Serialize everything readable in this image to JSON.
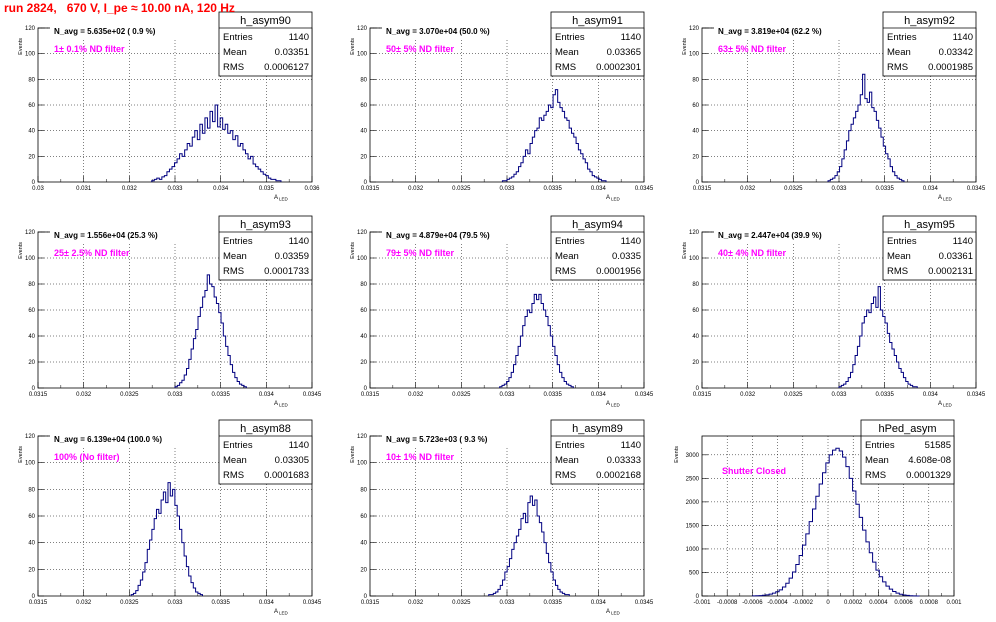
{
  "page": {
    "title": "run 2824,   670 V, I_pe ≈ 10.00 nA, 120 Hz",
    "colors": {
      "title": "#ff0000",
      "histogram": "#000080",
      "annotation": "#ff00ff",
      "grid": "#000000"
    }
  },
  "stat_labels": {
    "entries": "Entries",
    "mean": "Mean",
    "rms": "RMS"
  },
  "chart_data": [
    {
      "type": "histogram",
      "name": "h_asym90",
      "navg_text": "N_avg = 5.635e+02 ( 0.9 %)",
      "filter_text": "1± 0.1% ND filter",
      "stats": {
        "entries": "1140",
        "mean": "0.03351",
        "rms": "0.0006127"
      },
      "xlabel": "A_LED",
      "ylabel": "Events",
      "xlim": [
        0.03,
        0.036
      ],
      "ylim": [
        0,
        120
      ],
      "xticks": [
        0.03,
        0.031,
        0.032,
        0.033,
        0.034,
        0.035,
        0.036
      ],
      "xtick_labels": [
        "0.03",
        "0.031",
        "0.032",
        "0.033",
        "0.034",
        "0.035",
        "0.036"
      ],
      "yticks": [
        0,
        20,
        40,
        60,
        80,
        100,
        120
      ],
      "ytick_labels": [
        "0",
        "20",
        "40",
        "60",
        "80",
        "100",
        "120"
      ],
      "grid": true,
      "bin_start": 0.03249,
      "bin_width": 5.55e-05,
      "values": [
        1,
        2,
        3,
        2,
        4,
        5,
        8,
        10,
        12,
        15,
        18,
        22,
        20,
        25,
        30,
        28,
        35,
        40,
        33,
        45,
        38,
        50,
        42,
        55,
        47,
        60,
        43,
        50,
        41,
        45,
        38,
        40,
        33,
        36,
        28,
        30,
        25,
        22,
        18,
        20,
        14,
        12,
        10,
        8,
        6,
        5,
        3,
        2,
        2,
        1,
        1
      ]
    },
    {
      "type": "histogram",
      "name": "h_asym91",
      "navg_text": "N_avg = 3.070e+04 (50.0 %)",
      "filter_text": "50± 5% ND filter",
      "stats": {
        "entries": "1140",
        "mean": "0.03365",
        "rms": "0.0002301"
      },
      "xlabel": "A_LED",
      "ylabel": "Events",
      "xlim": [
        0.0315,
        0.0345
      ],
      "ylim": [
        0,
        120
      ],
      "xticks": [
        0.0315,
        0.032,
        0.0325,
        0.033,
        0.0335,
        0.034,
        0.0345
      ],
      "xtick_labels": [
        "0.0315",
        "0.032",
        "0.0325",
        "0.033",
        "0.0335",
        "0.034",
        "0.0345"
      ],
      "yticks": [
        0,
        20,
        40,
        60,
        80,
        100,
        120
      ],
      "ytick_labels": [
        "0",
        "20",
        "40",
        "60",
        "80",
        "100",
        "120"
      ],
      "grid": true,
      "bin_start": 0.03295,
      "bin_width": 2.52e-05,
      "values": [
        1,
        1,
        2,
        3,
        4,
        6,
        8,
        12,
        15,
        20,
        25,
        22,
        30,
        35,
        40,
        42,
        50,
        48,
        52,
        55,
        60,
        58,
        68,
        72,
        62,
        58,
        55,
        50,
        48,
        42,
        38,
        35,
        30,
        25,
        22,
        18,
        15,
        10,
        8,
        5,
        4,
        3,
        2,
        1,
        1
      ]
    },
    {
      "type": "histogram",
      "name": "h_asym92",
      "navg_text": "N_avg = 3.819e+04 (62.2 %)",
      "filter_text": "63± 5% ND filter",
      "stats": {
        "entries": "1140",
        "mean": "0.03342",
        "rms": "0.0001985"
      },
      "xlabel": "A_LED",
      "ylabel": "Events",
      "xlim": [
        0.0315,
        0.0345
      ],
      "ylim": [
        0,
        120
      ],
      "xticks": [
        0.0315,
        0.032,
        0.0325,
        0.033,
        0.0335,
        0.034,
        0.0345
      ],
      "xtick_labels": [
        "0.0315",
        "0.032",
        "0.0325",
        "0.033",
        "0.0335",
        "0.034",
        "0.0345"
      ],
      "yticks": [
        0,
        20,
        40,
        60,
        80,
        100,
        120
      ],
      "ytick_labels": [
        "0",
        "20",
        "40",
        "60",
        "80",
        "100",
        "120"
      ],
      "grid": true,
      "bin_start": 0.03288,
      "bin_width": 2.52e-05,
      "values": [
        1,
        2,
        3,
        5,
        8,
        12,
        18,
        25,
        32,
        40,
        45,
        50,
        55,
        60,
        68,
        84,
        65,
        62,
        70,
        58,
        55,
        48,
        42,
        35,
        28,
        22,
        18,
        12,
        8,
        5,
        3,
        2,
        1
      ]
    },
    {
      "type": "histogram",
      "name": "h_asym93",
      "navg_text": "N_avg = 1.556e+04 (25.3 %)",
      "filter_text": "25± 2.5% ND filter",
      "stats": {
        "entries": "1140",
        "mean": "0.03359",
        "rms": "0.0001733"
      },
      "xlabel": "A_LED",
      "ylabel": "Events",
      "xlim": [
        0.0315,
        0.0345
      ],
      "ylim": [
        0,
        120
      ],
      "xticks": [
        0.0315,
        0.032,
        0.0325,
        0.033,
        0.0335,
        0.034,
        0.0345
      ],
      "xtick_labels": [
        "0.0315",
        "0.032",
        "0.0325",
        "0.033",
        "0.0335",
        "0.034",
        "0.0345"
      ],
      "yticks": [
        0,
        20,
        40,
        60,
        80,
        100,
        120
      ],
      "ytick_labels": [
        "0",
        "20",
        "40",
        "60",
        "80",
        "100",
        "120"
      ],
      "grid": true,
      "bin_start": 0.033,
      "bin_width": 2.52e-05,
      "values": [
        1,
        2,
        4,
        6,
        10,
        15,
        22,
        30,
        38,
        45,
        55,
        62,
        70,
        75,
        87,
        80,
        78,
        70,
        65,
        58,
        50,
        40,
        32,
        25,
        18,
        12,
        8,
        5,
        3,
        2,
        1
      ]
    },
    {
      "type": "histogram",
      "name": "h_asym94",
      "navg_text": "N_avg = 4.879e+04 (79.5 %)",
      "filter_text": "79± 5% ND filter",
      "stats": {
        "entries": "1140",
        "mean": "0.0335",
        "rms": "0.0001956"
      },
      "xlabel": "A_LED",
      "ylabel": "Events",
      "xlim": [
        0.0315,
        0.0345
      ],
      "ylim": [
        0,
        120
      ],
      "xticks": [
        0.0315,
        0.032,
        0.0325,
        0.033,
        0.0335,
        0.034,
        0.0345
      ],
      "xtick_labels": [
        "0.0315",
        "0.032",
        "0.0325",
        "0.033",
        "0.0335",
        "0.034",
        "0.0345"
      ],
      "yticks": [
        0,
        20,
        40,
        60,
        80,
        100,
        120
      ],
      "ytick_labels": [
        "0",
        "20",
        "40",
        "60",
        "80",
        "100",
        "120"
      ],
      "grid": true,
      "bin_start": 0.03292,
      "bin_width": 2.52e-05,
      "values": [
        1,
        2,
        3,
        5,
        8,
        12,
        18,
        25,
        32,
        40,
        48,
        55,
        60,
        58,
        65,
        72,
        68,
        72,
        65,
        60,
        55,
        48,
        40,
        32,
        25,
        18,
        12,
        8,
        5,
        3,
        2,
        1
      ]
    },
    {
      "type": "histogram",
      "name": "h_asym95",
      "navg_text": "N_avg = 2.447e+04 (39.9 %)",
      "filter_text": "40± 4% ND filter",
      "stats": {
        "entries": "1140",
        "mean": "0.03361",
        "rms": "0.0002131"
      },
      "xlabel": "A_LED",
      "ylabel": "Events",
      "xlim": [
        0.0315,
        0.0345
      ],
      "ylim": [
        0,
        120
      ],
      "xticks": [
        0.0315,
        0.032,
        0.0325,
        0.033,
        0.0335,
        0.034,
        0.0345
      ],
      "xtick_labels": [
        "0.0315",
        "0.032",
        "0.0325",
        "0.033",
        "0.0335",
        "0.034",
        "0.0345"
      ],
      "yticks": [
        0,
        20,
        40,
        60,
        80,
        100,
        120
      ],
      "ytick_labels": [
        "0",
        "20",
        "40",
        "60",
        "80",
        "100",
        "120"
      ],
      "grid": true,
      "bin_start": 0.033,
      "bin_width": 2.52e-05,
      "values": [
        1,
        2,
        3,
        5,
        8,
        12,
        18,
        25,
        32,
        40,
        50,
        55,
        60,
        58,
        65,
        70,
        62,
        78,
        60,
        55,
        50,
        42,
        35,
        30,
        25,
        20,
        15,
        12,
        8,
        5,
        3,
        2,
        1,
        1
      ]
    },
    {
      "type": "histogram",
      "name": "h_asym88",
      "navg_text": "N_avg = 6.139e+04 (100.0 %)",
      "filter_text": "100% (No filter)",
      "stats": {
        "entries": "1140",
        "mean": "0.03305",
        "rms": "0.0001683"
      },
      "xlabel": "A_LED",
      "ylabel": "Events",
      "xlim": [
        0.0315,
        0.0345
      ],
      "ylim": [
        0,
        120
      ],
      "xticks": [
        0.0315,
        0.032,
        0.0325,
        0.033,
        0.0335,
        0.034,
        0.0345
      ],
      "xtick_labels": [
        "0.0315",
        "0.032",
        "0.0325",
        "0.033",
        "0.0335",
        "0.034",
        "0.0345"
      ],
      "yticks": [
        0,
        20,
        40,
        60,
        80,
        100,
        120
      ],
      "ytick_labels": [
        "0",
        "20",
        "40",
        "60",
        "80",
        "100",
        "120"
      ],
      "grid": true,
      "bin_start": 0.03252,
      "bin_width": 2.52e-05,
      "values": [
        1,
        2,
        4,
        8,
        12,
        18,
        25,
        35,
        42,
        50,
        58,
        65,
        62,
        72,
        78,
        70,
        85,
        75,
        80,
        68,
        60,
        50,
        40,
        30,
        22,
        15,
        10,
        6,
        3,
        2,
        1
      ]
    },
    {
      "type": "histogram",
      "name": "h_asym89",
      "navg_text": "N_avg = 5.723e+03 ( 9.3 %)",
      "filter_text": "10± 1% ND filter",
      "stats": {
        "entries": "1140",
        "mean": "0.03333",
        "rms": "0.0002168"
      },
      "xlabel": "A_LED",
      "ylabel": "Events",
      "xlim": [
        0.0315,
        0.0345
      ],
      "ylim": [
        0,
        120
      ],
      "xticks": [
        0.0315,
        0.032,
        0.0325,
        0.033,
        0.0335,
        0.034,
        0.0345
      ],
      "xtick_labels": [
        "0.0315",
        "0.032",
        "0.0325",
        "0.033",
        "0.0335",
        "0.034",
        "0.0345"
      ],
      "yticks": [
        0,
        20,
        40,
        60,
        80,
        100,
        120
      ],
      "ytick_labels": [
        "0",
        "20",
        "40",
        "60",
        "80",
        "100",
        "120"
      ],
      "grid": true,
      "bin_start": 0.0328,
      "bin_width": 2.52e-05,
      "values": [
        1,
        1,
        2,
        3,
        5,
        8,
        12,
        18,
        22,
        28,
        35,
        40,
        45,
        50,
        58,
        62,
        55,
        70,
        75,
        68,
        72,
        60,
        55,
        48,
        40,
        32,
        25,
        18,
        12,
        8,
        5,
        3,
        2,
        1,
        1
      ]
    },
    {
      "type": "histogram",
      "name": "hPed_asym",
      "navg_text": "",
      "filter_text": "Shutter Closed",
      "stats": {
        "entries": "51585",
        "mean": "4.608e-08",
        "rms": "0.0001329"
      },
      "xlabel": "",
      "ylabel": "Events",
      "xlim": [
        -0.001,
        0.001
      ],
      "ylim": [
        0,
        3400
      ],
      "xticks": [
        -0.001,
        -0.0008,
        -0.0006,
        -0.0004,
        -0.0002,
        0,
        0.0002,
        0.0004,
        0.0006,
        0.0008,
        0.001
      ],
      "xtick_labels": [
        "-0.001",
        "-0.0008",
        "-0.0006",
        "-0.0004",
        "-0.0002",
        "0",
        "0.0002",
        "0.0004",
        "0.0006",
        "0.0008",
        "0.001"
      ],
      "yticks": [
        0,
        500,
        1000,
        1500,
        2000,
        2500,
        3000
      ],
      "ytick_labels": [
        "0",
        "500",
        "1000",
        "1500",
        "2000",
        "2500",
        "3000"
      ],
      "grid": true,
      "bin_start": -0.0006,
      "bin_width": 2.65e-05,
      "values": [
        2,
        4,
        8,
        15,
        25,
        40,
        60,
        90,
        130,
        190,
        270,
        380,
        510,
        670,
        860,
        1080,
        1320,
        1580,
        1850,
        2120,
        2380,
        2620,
        2830,
        3000,
        3100,
        3140,
        3080,
        2950,
        2750,
        2500,
        2230,
        1950,
        1670,
        1400,
        1150,
        920,
        720,
        550,
        410,
        300,
        210,
        145,
        95,
        60,
        38,
        22,
        12,
        6,
        3,
        1
      ]
    }
  ]
}
